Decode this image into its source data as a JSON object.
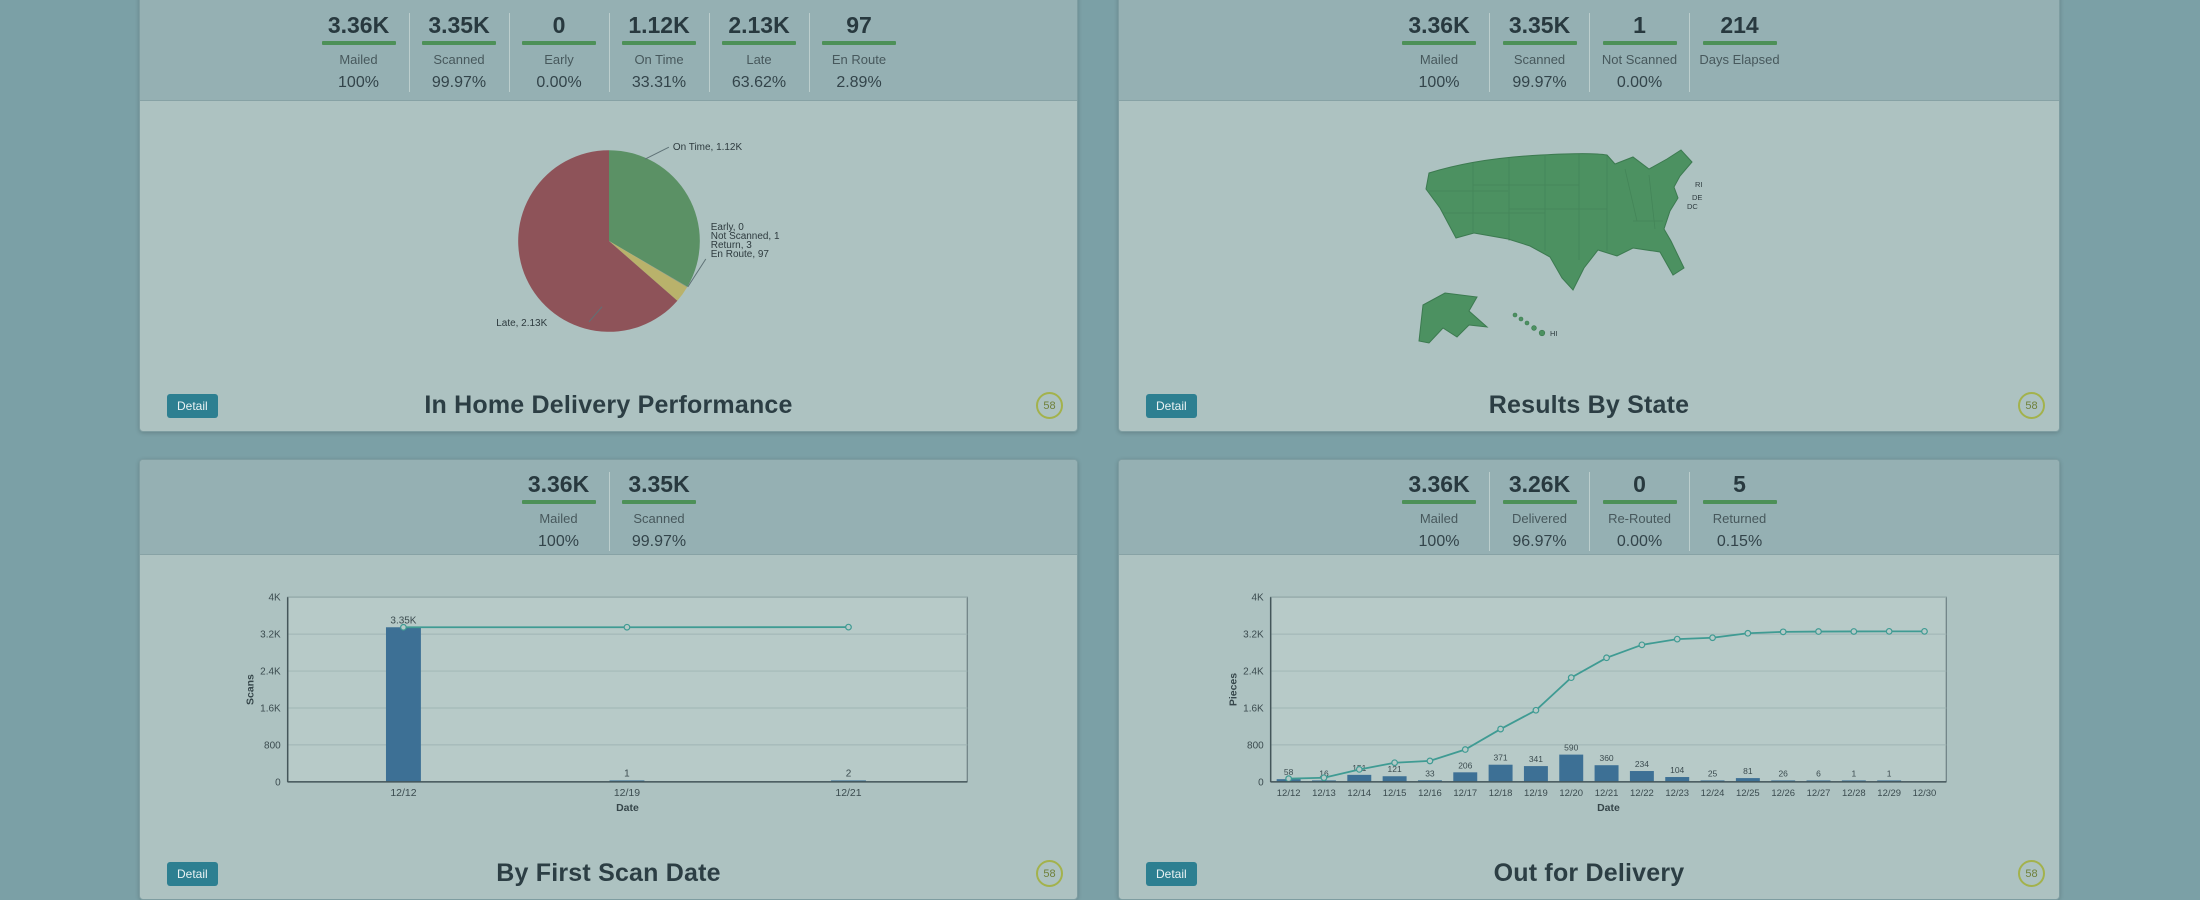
{
  "page": {
    "background": "#7ba0a6"
  },
  "colors": {
    "kpi_underline": "#4d9058",
    "bar": "#3d7095",
    "line": "#3f9b93",
    "map_fill": "#4c9161",
    "detail_button_bg": "#2d7f91",
    "badge_border": "#a3b24c"
  },
  "panels": [
    {
      "title": "In Home Delivery Performance",
      "detail_label": "Detail",
      "badge": "58",
      "kpis": [
        {
          "value": "3.36K",
          "label": "Mailed",
          "pct": "100%"
        },
        {
          "value": "3.35K",
          "label": "Scanned",
          "pct": "99.97%"
        },
        {
          "value": "0",
          "label": "Early",
          "pct": "0.00%"
        },
        {
          "value": "1.12K",
          "label": "On Time",
          "pct": "33.31%"
        },
        {
          "value": "2.13K",
          "label": "Late",
          "pct": "63.62%"
        },
        {
          "value": "97",
          "label": "En Route",
          "pct": "2.89%"
        }
      ],
      "chart_data": {
        "type": "pie",
        "title": "",
        "slices": [
          {
            "label": "On Time",
            "value": 1120,
            "display": "On Time, 1.12K",
            "color": "#5b9165"
          },
          {
            "label": "Early",
            "value": 0,
            "display": "Early, 0",
            "color": "#7a8f8f"
          },
          {
            "label": "Not Scanned",
            "value": 1,
            "display": "Not Scanned, 1",
            "color": "#7a8f8f"
          },
          {
            "label": "Return",
            "value": 3,
            "display": "Return, 3",
            "color": "#9a9a6a"
          },
          {
            "label": "En Route",
            "value": 97,
            "display": "En Route, 97",
            "color": "#b9b26b"
          },
          {
            "label": "Late",
            "value": 2130,
            "display": "Late, 2.13K",
            "color": "#8e5359"
          }
        ]
      }
    },
    {
      "title": "Results By State",
      "detail_label": "Detail",
      "badge": "58",
      "kpis": [
        {
          "value": "3.36K",
          "label": "Mailed",
          "pct": "100%"
        },
        {
          "value": "3.35K",
          "label": "Scanned",
          "pct": "99.97%"
        },
        {
          "value": "1",
          "label": "Not Scanned",
          "pct": "0.00%"
        },
        {
          "value": "214",
          "label": "Days Elapsed",
          "pct": ""
        }
      ],
      "chart_data": {
        "type": "map",
        "region": "United States",
        "fill": "#4c9161",
        "state_labels": [
          "RI",
          "DE",
          "DC",
          "HI"
        ]
      }
    },
    {
      "title": "By First Scan Date",
      "detail_label": "Detail",
      "badge": "58",
      "kpis": [
        {
          "value": "3.36K",
          "label": "Mailed",
          "pct": "100%"
        },
        {
          "value": "3.35K",
          "label": "Scanned",
          "pct": "99.97%"
        }
      ],
      "chart_data": {
        "type": "bar",
        "categories": [
          "12/12",
          "12/19",
          "12/21"
        ],
        "values": [
          3349,
          1,
          2
        ],
        "bar_labels": [
          "3.35K",
          "1",
          "2"
        ],
        "line_values": [
          3349,
          3350,
          3352
        ],
        "xlabel": "Date",
        "ylabel": "Scans",
        "ylim": [
          0,
          4000
        ],
        "yticks": [
          [
            0,
            "0"
          ],
          [
            800,
            "800"
          ],
          [
            1600,
            "1.6K"
          ],
          [
            2400,
            "2.4K"
          ],
          [
            3200,
            "3.2K"
          ],
          [
            4000,
            "4K"
          ]
        ]
      }
    },
    {
      "title": "Out for Delivery",
      "detail_label": "Detail",
      "badge": "58",
      "kpis": [
        {
          "value": "3.36K",
          "label": "Mailed",
          "pct": "100%"
        },
        {
          "value": "3.26K",
          "label": "Delivered",
          "pct": "96.97%"
        },
        {
          "value": "0",
          "label": "Re-Routed",
          "pct": "0.00%"
        },
        {
          "value": "5",
          "label": "Returned",
          "pct": "0.15%"
        }
      ],
      "chart_data": {
        "type": "bar",
        "categories": [
          "12/12",
          "12/13",
          "12/14",
          "12/15",
          "12/16",
          "12/17",
          "12/18",
          "12/19",
          "12/20",
          "12/21",
          "12/22",
          "12/23",
          "12/24",
          "12/25",
          "12/26",
          "12/27",
          "12/28",
          "12/29",
          "12/30"
        ],
        "values": [
          58,
          16,
          151,
          121,
          33,
          206,
          371,
          341,
          590,
          360,
          234,
          104,
          25,
          81,
          26,
          6,
          1,
          1,
          0
        ],
        "bar_labels": [
          "58",
          "16",
          "151",
          "121",
          "33",
          "206",
          "371",
          "341",
          "590",
          "360",
          "234",
          "104",
          "25",
          "81",
          "26",
          "6",
          "1",
          "1",
          ""
        ],
        "line_values": [
          69,
          89,
          269,
          414,
          453,
          700,
          1143,
          1551,
          2257,
          2688,
          2968,
          3092,
          3122,
          3219,
          3250,
          3257,
          3258,
          3260,
          3260
        ],
        "xlabel": "Date",
        "ylabel": "Pieces",
        "ylim": [
          0,
          4000
        ],
        "yticks": [
          [
            0,
            "0"
          ],
          [
            800,
            "800"
          ],
          [
            1600,
            "1.6K"
          ],
          [
            2400,
            "2.4K"
          ],
          [
            3200,
            "3.2K"
          ],
          [
            4000,
            "4K"
          ]
        ]
      }
    }
  ]
}
